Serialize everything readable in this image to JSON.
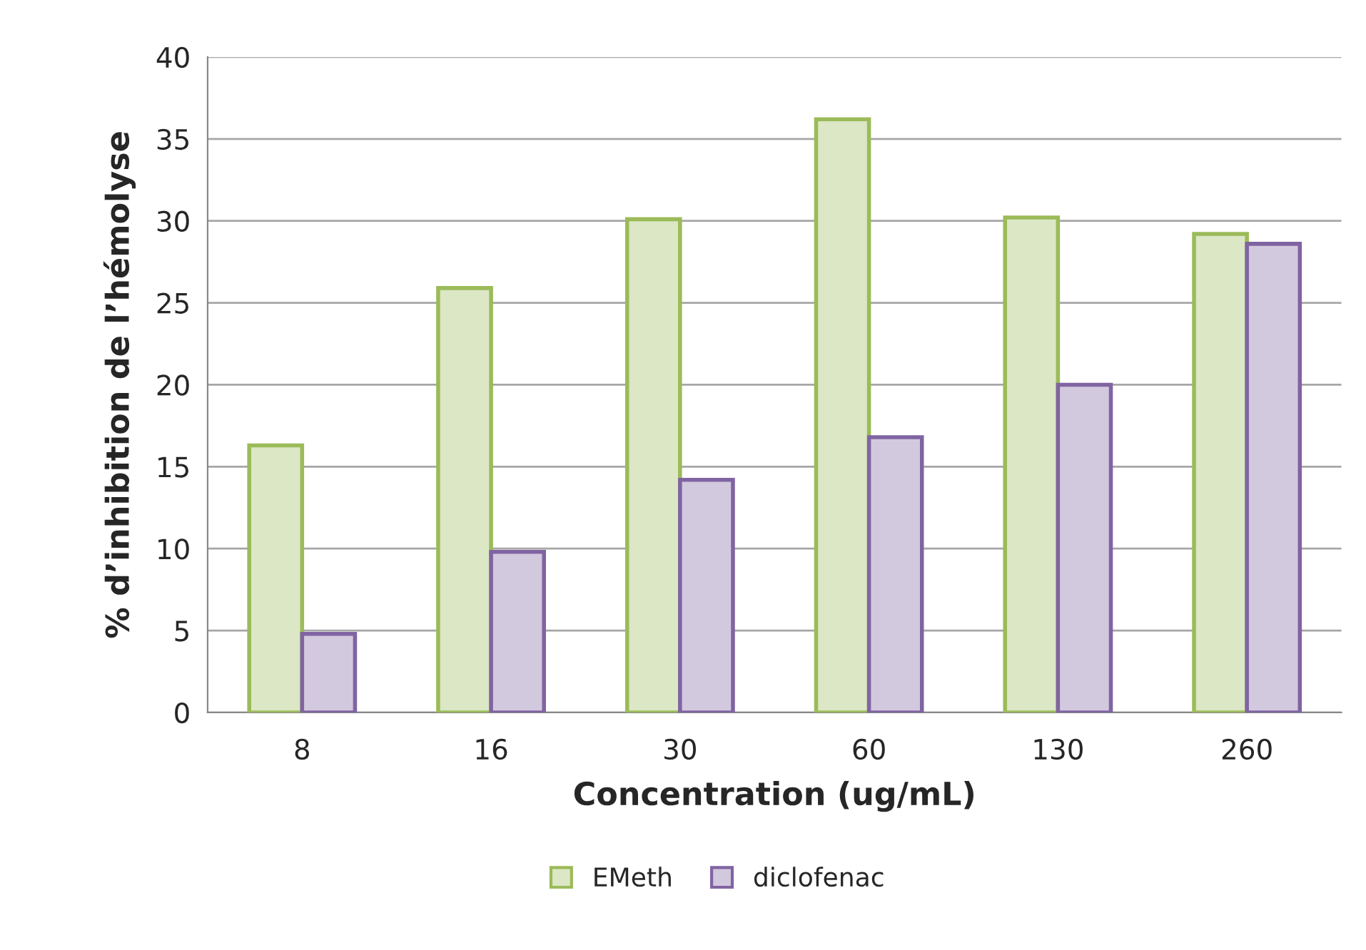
{
  "chart_data": {
    "type": "bar",
    "xlabel": "Concentration (ug/mL)",
    "ylabel": "% d’inhibition de l’hémolyse",
    "categories": [
      "8",
      "16",
      "30",
      "60",
      "130",
      "260"
    ],
    "series": [
      {
        "name": "EMeth",
        "color": "#9bbb59",
        "values": [
          16.3,
          25.9,
          30.1,
          36.2,
          30.2,
          29.2
        ]
      },
      {
        "name": "diclofenac",
        "color": "#8064a2",
        "values": [
          4.8,
          9.8,
          14.2,
          16.8,
          20.0,
          28.6
        ]
      }
    ],
    "ylim": [
      0,
      40
    ],
    "yticks": [
      0,
      5,
      10,
      15,
      20,
      25,
      30,
      35,
      40
    ],
    "grid": "y",
    "legend": "bottom"
  }
}
